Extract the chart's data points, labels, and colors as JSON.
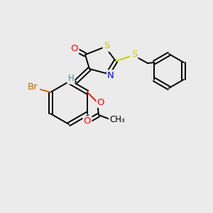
{
  "bg_color": "#ebebeb",
  "atom_colors": {
    "S": "#cccc00",
    "N": "#0000ff",
    "O": "#ff0000",
    "Br": "#cc6600",
    "C": "#000000",
    "H": "#448888"
  },
  "figsize": [
    3.0,
    3.0
  ],
  "dpi": 100,
  "lw": 1.4,
  "fontsize": 9.5
}
